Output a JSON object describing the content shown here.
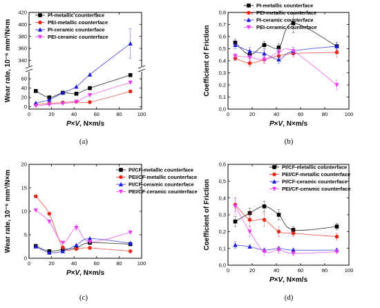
{
  "chart_data": [
    {
      "panel": "(a)",
      "type": "scatter",
      "xlabel": "P×V, N×m/s",
      "ylabel": "Wear rate, 10⁻⁶ mm³/N×m",
      "xlim": [
        0,
        100
      ],
      "xticks": [
        0,
        20,
        40,
        60,
        80,
        100
      ],
      "axis_break": true,
      "ylim_lower": [
        -5,
        75
      ],
      "yticks_lower": [
        0,
        20,
        40,
        60
      ],
      "ylim_upper": [
        330,
        420
      ],
      "yticks_upper": [
        340,
        360,
        380,
        400,
        420
      ],
      "legend_position": "top-left",
      "series": [
        {
          "name": "PI-metallic counterface",
          "color": "#000000",
          "marker": "square",
          "x": [
            6,
            18,
            30,
            42,
            54,
            90
          ],
          "y": [
            34,
            20,
            30,
            28,
            40,
            68
          ],
          "err": [
            0,
            0,
            0,
            0,
            0,
            0
          ]
        },
        {
          "name": "PEI-metallic counterface",
          "color": "#e8281c",
          "marker": "circle",
          "x": [
            6,
            18,
            30,
            42,
            54,
            90
          ],
          "y": [
            5,
            7,
            9,
            11,
            10,
            33
          ],
          "err": [
            0,
            0,
            0,
            0,
            0,
            0
          ]
        },
        {
          "name": "PI-ceramic counterface",
          "color": "#1a1adb",
          "marker": "triangle-up",
          "x": [
            6,
            18,
            30,
            42,
            54,
            90
          ],
          "y": [
            8,
            15,
            30,
            43,
            69,
            368
          ],
          "err": [
            0,
            0,
            0,
            0,
            0,
            25
          ]
        },
        {
          "name": "PEI-ceramic counterface",
          "color": "#e83cf0",
          "marker": "triangle-down",
          "x": [
            6,
            18,
            30,
            42,
            54,
            90
          ],
          "y": [
            2,
            5,
            7,
            11,
            25,
            52
          ],
          "err": [
            0,
            0,
            0,
            0,
            0,
            0
          ]
        }
      ]
    },
    {
      "panel": "(b)",
      "type": "scatter",
      "xlabel": "P×V, N×m/s",
      "ylabel": "Coefficient of Friction",
      "xlim": [
        0,
        100
      ],
      "xticks": [
        0,
        20,
        40,
        60,
        80,
        100
      ],
      "ylim": [
        0.0,
        0.8
      ],
      "yticks": [
        0.0,
        0.1,
        0.2,
        0.3,
        0.4,
        0.5,
        0.6,
        0.7,
        0.8
      ],
      "legend_position": "top-right",
      "series": [
        {
          "name": "PI-metallic counterface",
          "color": "#000000",
          "marker": "square",
          "x": [
            6,
            18,
            30,
            42,
            54,
            90
          ],
          "y": [
            0.55,
            0.45,
            0.53,
            0.51,
            0.71,
            0.52
          ],
          "err": [
            0.03,
            0.03,
            0.03,
            0.03,
            0.08,
            0.03
          ]
        },
        {
          "name": "PEI-metallic counterface",
          "color": "#e8281c",
          "marker": "circle",
          "x": [
            6,
            18,
            30,
            42,
            54,
            90
          ],
          "y": [
            0.42,
            0.38,
            0.41,
            0.44,
            0.46,
            0.47
          ],
          "err": [
            0.02,
            0.03,
            0.03,
            0.03,
            0.03,
            0.04
          ]
        },
        {
          "name": "PI-ceramic counterface",
          "color": "#1a1adb",
          "marker": "triangle-up",
          "x": [
            6,
            18,
            30,
            42,
            54,
            90
          ],
          "y": [
            0.53,
            0.48,
            0.46,
            0.41,
            0.48,
            0.52
          ],
          "err": [
            0.03,
            0.03,
            0.03,
            0.03,
            0.03,
            0.03
          ]
        },
        {
          "name": "PEI-ceramic counterface",
          "color": "#e83cf0",
          "marker": "triangle-down",
          "x": [
            6,
            18,
            30,
            42,
            54,
            90
          ],
          "y": [
            0.44,
            0.43,
            0.41,
            0.47,
            0.48,
            0.2
          ],
          "err": [
            0.02,
            0.03,
            0.03,
            0.03,
            0.03,
            0.04
          ]
        }
      ]
    },
    {
      "panel": "(c)",
      "type": "scatter",
      "xlabel": "P×V, N×m/s",
      "ylabel": "Wear rate, 10⁻⁶ mm³/N×m",
      "xlim": [
        0,
        100
      ],
      "xticks": [
        0,
        20,
        40,
        60,
        80,
        100
      ],
      "ylim": [
        0,
        20
      ],
      "yticks": [
        0,
        5,
        10,
        15,
        20
      ],
      "legend_position": "top-right",
      "series": [
        {
          "name": "PI/CF-metallic counterface",
          "color": "#000000",
          "marker": "square",
          "x": [
            6,
            18,
            30,
            42,
            54,
            90
          ],
          "y": [
            2.6,
            1.5,
            1.9,
            2.2,
            3.3,
            3.0
          ],
          "err": [
            0,
            0,
            0,
            0,
            0,
            0
          ]
        },
        {
          "name": "PEI/CF-metallic counterface",
          "color": "#e8281c",
          "marker": "circle",
          "x": [
            6,
            18,
            30,
            42,
            54,
            90
          ],
          "y": [
            13.2,
            9.5,
            2.3,
            2.0,
            2.2,
            1.5
          ],
          "err": [
            0,
            0,
            0,
            0,
            0,
            0
          ]
        },
        {
          "name": "PI/CF-ceramic counterface",
          "color": "#1a1adb",
          "marker": "triangle-up",
          "x": [
            6,
            18,
            30,
            42,
            54,
            90
          ],
          "y": [
            2.5,
            1.2,
            1.5,
            2.8,
            4.2,
            3.2
          ],
          "err": [
            0,
            0,
            0,
            0,
            0,
            0
          ]
        },
        {
          "name": "PEI/CF-ceramic counterface",
          "color": "#e83cf0",
          "marker": "triangle-down",
          "x": [
            6,
            18,
            30,
            42,
            54,
            90
          ],
          "y": [
            10.2,
            7.8,
            3.3,
            6.5,
            3.5,
            5.5
          ],
          "err": [
            0,
            0,
            0,
            0.6,
            0,
            0
          ]
        }
      ]
    },
    {
      "panel": "(d)",
      "type": "scatter",
      "xlabel": "P×V, N×m/s",
      "ylabel": "Coefficient of Friction",
      "xlim": [
        0,
        100
      ],
      "xticks": [
        0,
        20,
        40,
        60,
        80,
        100
      ],
      "ylim": [
        0.0,
        0.6
      ],
      "yticks": [
        0.0,
        0.1,
        0.2,
        0.3,
        0.4,
        0.5,
        0.6
      ],
      "legend_position": "top-right",
      "series": [
        {
          "name": "PI/CF-metallic counterface",
          "color": "#000000",
          "marker": "square",
          "x": [
            6,
            18,
            30,
            42,
            54,
            90
          ],
          "y": [
            0.26,
            0.31,
            0.35,
            0.3,
            0.21,
            0.23
          ],
          "err": [
            0.03,
            0.03,
            0.03,
            0.03,
            0.02,
            0.02
          ]
        },
        {
          "name": "PEI/CF-metallic counterface",
          "color": "#e8281c",
          "marker": "circle",
          "x": [
            6,
            18,
            30,
            42,
            54,
            90
          ],
          "y": [
            0.36,
            0.27,
            0.27,
            0.2,
            0.19,
            0.17
          ],
          "err": [
            0.04,
            0.04,
            0.04,
            0.03,
            0.02,
            0.02
          ]
        },
        {
          "name": "PI/CF-ceramic counterface",
          "color": "#1a1adb",
          "marker": "triangle-up",
          "x": [
            6,
            18,
            30,
            42,
            54,
            90
          ],
          "y": [
            0.12,
            0.11,
            0.09,
            0.1,
            0.09,
            0.09
          ],
          "err": [
            0.02,
            0.01,
            0.01,
            0.01,
            0.01,
            0.01
          ]
        },
        {
          "name": "PEI/CF-ceramic counterface",
          "color": "#e83cf0",
          "marker": "triangle-down",
          "x": [
            6,
            18,
            30,
            42,
            54,
            90
          ],
          "y": [
            0.35,
            0.2,
            0.08,
            0.09,
            0.07,
            0.08
          ],
          "err": [
            0.05,
            0.03,
            0.02,
            0.02,
            0.01,
            0.01
          ]
        }
      ]
    }
  ]
}
